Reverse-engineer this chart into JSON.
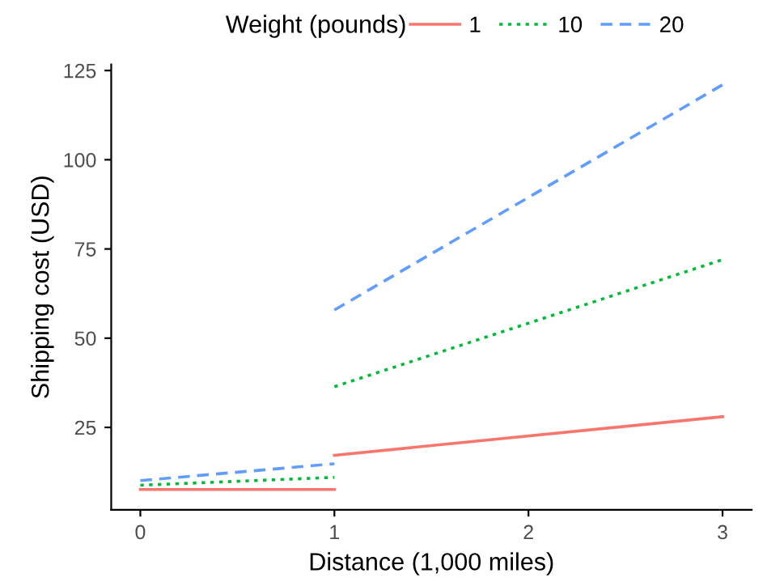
{
  "chart_data": {
    "type": "line",
    "xlabel": "Distance (1,000 miles)",
    "ylabel": "Shipping cost (USD)",
    "legend_title": "Weight (pounds)",
    "legend": "top",
    "grid": false,
    "marker": "none",
    "series": [
      {
        "name": "1",
        "color": "#f8766d",
        "line_style": "solid",
        "x": [
          0,
          1
        ],
        "values": [
          7.6,
          7.6
        ]
      },
      {
        "color": "#f8766d",
        "line_style": "solid",
        "x": [
          1,
          3
        ],
        "values": [
          17.2,
          28
        ]
      },
      {
        "name": "10",
        "color": "#00ba38",
        "line_style": "dotted",
        "x": [
          0,
          1
        ],
        "values": [
          8.8,
          11
        ]
      },
      {
        "color": "#00ba38",
        "line_style": "dotted",
        "x": [
          1,
          3
        ],
        "values": [
          36.4,
          72
        ]
      },
      {
        "name": "20",
        "color": "#619cff",
        "line_style": "dashed",
        "x": [
          0,
          1
        ],
        "values": [
          10.1,
          14.8
        ]
      },
      {
        "color": "#619cff",
        "line_style": "dashed",
        "x": [
          1,
          3
        ],
        "values": [
          57.9,
          121
        ]
      }
    ],
    "xlim": [
      -0.15,
      3.15
    ],
    "xticks": [
      0,
      1,
      2,
      3
    ],
    "ylim": [
      1.9,
      126.7
    ],
    "yticks": [
      25,
      50,
      75,
      100,
      125
    ]
  }
}
